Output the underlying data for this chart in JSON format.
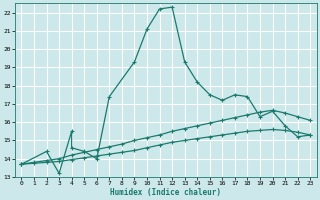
{
  "background_color": "#cce8ea",
  "grid_color": "#ffffff",
  "line_color": "#1a7a6e",
  "xlabel": "Humidex (Indice chaleur)",
  "xlim": [
    -0.5,
    23.5
  ],
  "ylim": [
    13,
    22.5
  ],
  "yticks": [
    13,
    14,
    15,
    16,
    17,
    18,
    19,
    20,
    21,
    22
  ],
  "xticks": [
    0,
    1,
    2,
    3,
    4,
    5,
    6,
    7,
    8,
    9,
    10,
    11,
    12,
    13,
    14,
    15,
    16,
    17,
    18,
    19,
    20,
    21,
    22,
    23
  ],
  "series1_x": [
    0,
    2,
    3,
    4,
    4,
    5,
    6,
    7,
    9,
    10,
    11,
    12,
    13,
    14,
    15,
    16,
    17,
    18,
    19,
    20,
    21,
    22,
    23
  ],
  "series1_y": [
    13.7,
    14.4,
    13.2,
    15.5,
    14.6,
    14.4,
    14.0,
    17.4,
    19.3,
    21.1,
    22.2,
    22.3,
    19.3,
    18.2,
    17.5,
    17.2,
    17.5,
    17.4,
    16.3,
    16.6,
    15.8,
    15.2,
    15.3
  ],
  "series2_x": [
    0,
    1,
    2,
    3,
    4,
    5,
    6,
    7,
    8,
    9,
    10,
    11,
    12,
    13,
    14,
    15,
    16,
    17,
    18,
    19,
    20,
    21,
    22,
    23
  ],
  "series2_y": [
    13.7,
    13.8,
    13.9,
    14.0,
    14.2,
    14.35,
    14.5,
    14.65,
    14.8,
    15.0,
    15.15,
    15.3,
    15.5,
    15.65,
    15.8,
    15.95,
    16.1,
    16.25,
    16.4,
    16.55,
    16.65,
    16.5,
    16.3,
    16.1
  ],
  "series3_x": [
    0,
    1,
    2,
    3,
    4,
    5,
    6,
    7,
    8,
    9,
    10,
    11,
    12,
    13,
    14,
    15,
    16,
    17,
    18,
    19,
    20,
    21,
    22,
    23
  ],
  "series3_y": [
    13.7,
    13.75,
    13.8,
    13.85,
    13.95,
    14.05,
    14.15,
    14.25,
    14.35,
    14.45,
    14.6,
    14.75,
    14.9,
    15.0,
    15.1,
    15.2,
    15.3,
    15.4,
    15.5,
    15.55,
    15.6,
    15.55,
    15.45,
    15.3
  ]
}
